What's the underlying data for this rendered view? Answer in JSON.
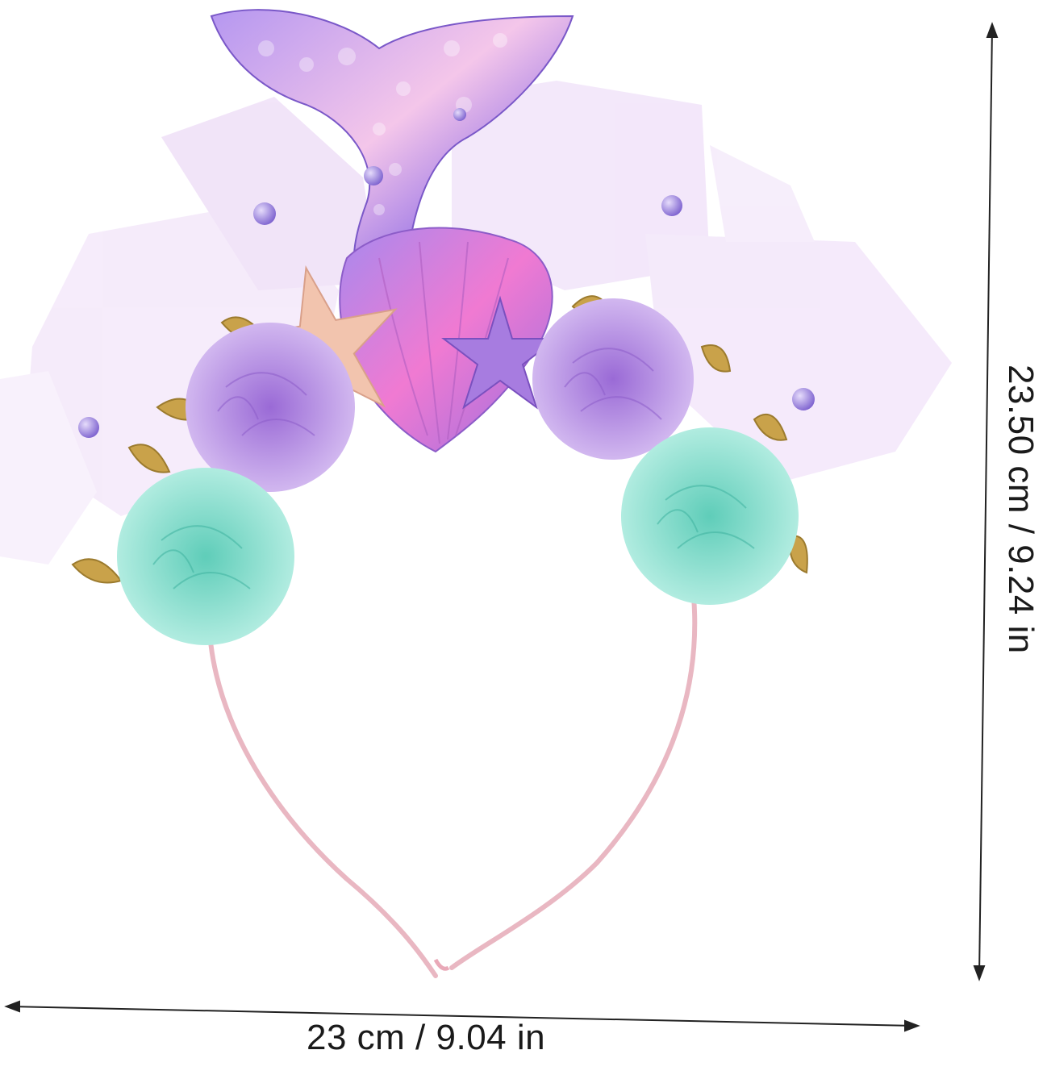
{
  "dimensions": {
    "width_label": "23 cm / 9.04 in",
    "height_label": "23.50 cm / 9.24 in"
  },
  "product": {
    "colors": {
      "tail_purple": "#9b6fe0",
      "tail_pink": "#f3b8e8",
      "tulle": "#ead6f5",
      "rose_purple": "#b38be0",
      "rose_teal": "#8fe0d0",
      "shell": "#d86fc8",
      "starfish": "#f0c3a8",
      "leaf_gold": "#c9a24a",
      "band_pink": "#e9b7c2",
      "pearl": "#8e73d6"
    }
  }
}
